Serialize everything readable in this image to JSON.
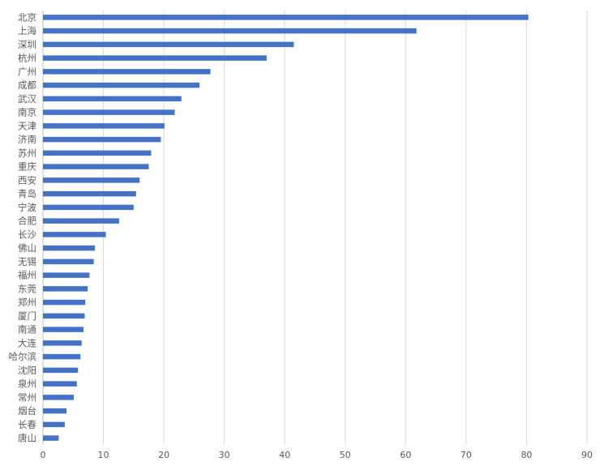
{
  "chart_data": {
    "type": "bar",
    "orientation": "horizontal",
    "categories": [
      "北京",
      "上海",
      "深圳",
      "杭州",
      "广州",
      "成都",
      "武汉",
      "南京",
      "天津",
      "济南",
      "苏州",
      "重庆",
      "西安",
      "青岛",
      "宁波",
      "合肥",
      "长沙",
      "佛山",
      "无锡",
      "福州",
      "东莞",
      "郑州",
      "厦门",
      "南通",
      "大连",
      "哈尔滨",
      "沈阳",
      "泉州",
      "常州",
      "烟台",
      "长春",
      "唐山"
    ],
    "values": [
      80.3,
      61.8,
      41.5,
      37.0,
      27.7,
      25.9,
      22.9,
      21.8,
      20.1,
      19.5,
      17.9,
      17.5,
      16.0,
      15.4,
      15.0,
      12.6,
      10.4,
      8.6,
      8.4,
      7.7,
      7.4,
      7.0,
      6.9,
      6.7,
      6.4,
      6.2,
      5.8,
      5.6,
      5.1,
      3.9,
      3.6,
      2.6
    ],
    "xlim": [
      0,
      90
    ],
    "xticks": [
      0,
      10,
      20,
      30,
      40,
      50,
      60,
      70,
      80,
      90
    ],
    "grid": "vertical",
    "legend": "none",
    "title": "",
    "xlabel": "",
    "ylabel": ""
  },
  "colors": {
    "bar": "#4472c4",
    "grid": "#d9d9d9",
    "text": "#595959"
  }
}
